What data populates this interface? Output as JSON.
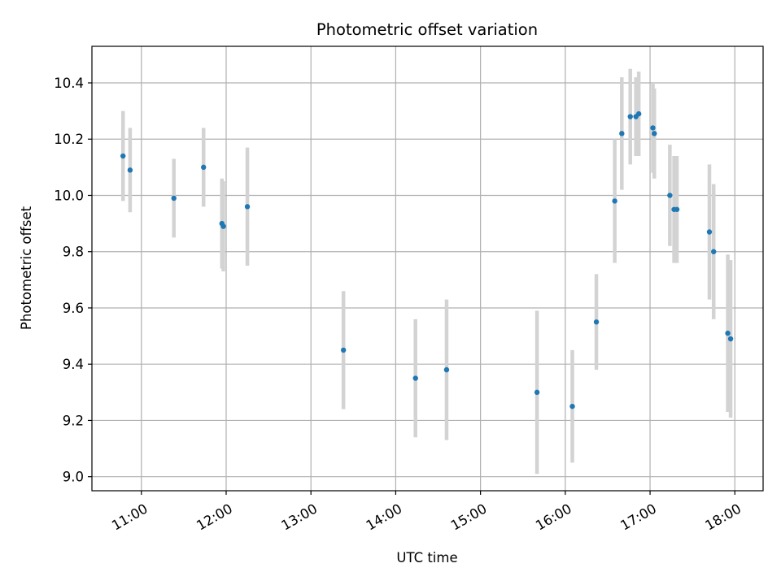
{
  "chart_data": {
    "type": "scatter",
    "title": "Photometric offset variation",
    "xlabel": "UTC time",
    "ylabel": "Photometric offset",
    "grid": true,
    "xlim": [
      "10:25",
      "18:20"
    ],
    "ylim": [
      8.95,
      10.53
    ],
    "xticks": [
      "11:00",
      "12:00",
      "13:00",
      "14:00",
      "15:00",
      "16:00",
      "17:00",
      "18:00"
    ],
    "yticks": [
      "9.0",
      "9.2",
      "9.4",
      "9.6",
      "9.8",
      "10.0",
      "10.2",
      "10.4"
    ],
    "marker_color": "#1f77b4",
    "errorbar_color": "#d3d3d3",
    "series": [
      {
        "points": [
          {
            "x": "10:47",
            "y": 10.14,
            "yerr": 0.16
          },
          {
            "x": "10:52",
            "y": 10.09,
            "yerr": 0.15
          },
          {
            "x": "11:23",
            "y": 9.99,
            "yerr": 0.14
          },
          {
            "x": "11:44",
            "y": 10.1,
            "yerr": 0.14
          },
          {
            "x": "11:57",
            "y": 9.9,
            "yerr": 0.16
          },
          {
            "x": "11:58",
            "y": 9.89,
            "yerr": 0.16
          },
          {
            "x": "12:15",
            "y": 9.96,
            "yerr": 0.21
          },
          {
            "x": "13:23",
            "y": 9.45,
            "yerr": 0.21
          },
          {
            "x": "14:14",
            "y": 9.35,
            "yerr": 0.21
          },
          {
            "x": "14:36",
            "y": 9.38,
            "yerr": 0.25
          },
          {
            "x": "15:40",
            "y": 9.3,
            "yerr": 0.29
          },
          {
            "x": "16:05",
            "y": 9.25,
            "yerr": 0.2
          },
          {
            "x": "16:22",
            "y": 9.55,
            "yerr": 0.17
          },
          {
            "x": "16:35",
            "y": 9.98,
            "yerr": 0.22
          },
          {
            "x": "16:40",
            "y": 10.22,
            "yerr": 0.2
          },
          {
            "x": "16:46",
            "y": 10.28,
            "yerr": 0.17
          },
          {
            "x": "16:50",
            "y": 10.28,
            "yerr": 0.14
          },
          {
            "x": "16:52",
            "y": 10.29,
            "yerr": 0.15
          },
          {
            "x": "17:02",
            "y": 10.24,
            "yerr": 0.16
          },
          {
            "x": "17:03",
            "y": 10.22,
            "yerr": 0.16
          },
          {
            "x": "17:14",
            "y": 10.0,
            "yerr": 0.18
          },
          {
            "x": "17:17",
            "y": 9.95,
            "yerr": 0.19
          },
          {
            "x": "17:19",
            "y": 9.95,
            "yerr": 0.19
          },
          {
            "x": "17:42",
            "y": 9.87,
            "yerr": 0.24
          },
          {
            "x": "17:45",
            "y": 9.8,
            "yerr": 0.24
          },
          {
            "x": "17:55",
            "y": 9.51,
            "yerr": 0.28
          },
          {
            "x": "17:57",
            "y": 9.49,
            "yerr": 0.28
          }
        ]
      }
    ]
  }
}
